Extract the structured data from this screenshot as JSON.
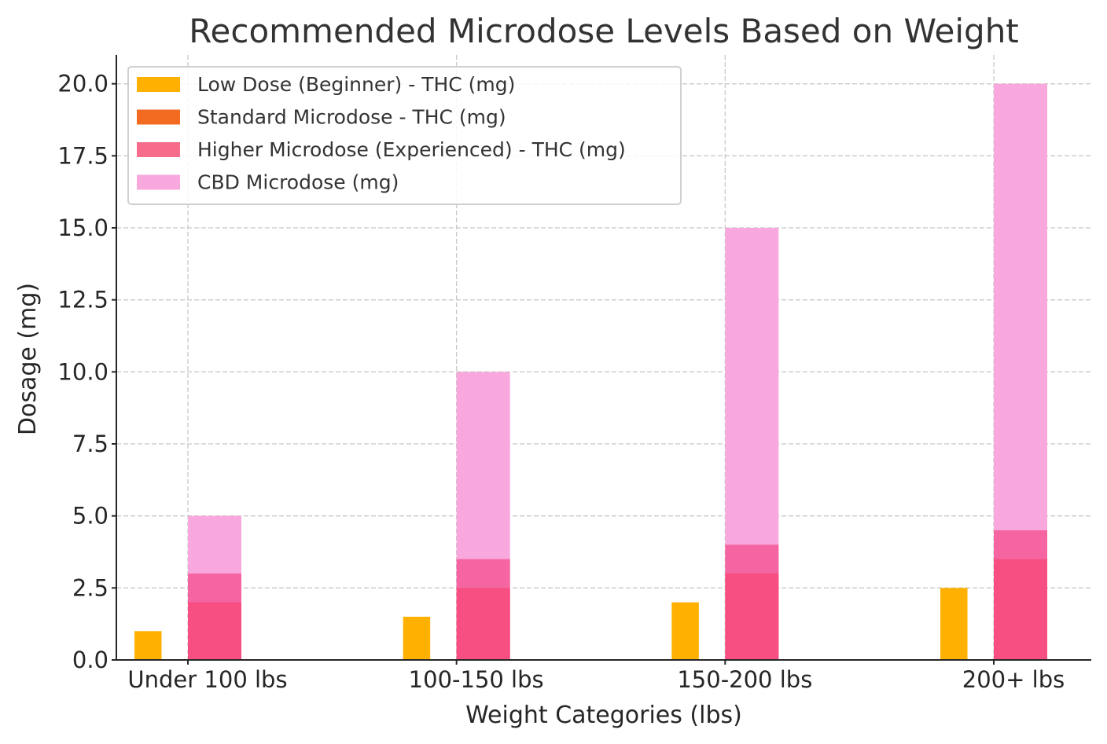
{
  "chart_data": {
    "type": "bar",
    "title": "Recommended Microdose Levels Based on Weight",
    "xlabel": "Weight Categories (lbs)",
    "ylabel": "Dosage (mg)",
    "categories": [
      "Under 100 lbs",
      "100-150 lbs",
      "150-200 lbs",
      "200+ lbs"
    ],
    "ylim": [
      0,
      21
    ],
    "yticks": [
      "0.0",
      "2.5",
      "5.0",
      "7.5",
      "10.0",
      "12.5",
      "15.0",
      "17.5",
      "20.0"
    ],
    "grid": true,
    "legend_position": "top-left",
    "series": [
      {
        "name": "Low Dose (Beginner) - THC (mg)",
        "values": [
          1,
          1.5,
          2,
          2.5
        ],
        "color": "#FFB000"
      },
      {
        "name": "Standard Microdose - THC (mg)",
        "values": [
          2,
          2.5,
          3,
          3.5
        ],
        "color": "#F26B21"
      },
      {
        "name": "Higher Microdose (Experienced) - THC (mg)",
        "values": [
          3,
          3.5,
          4,
          4.5
        ],
        "color": "#F76C8A"
      },
      {
        "name": "CBD Microdose (mg)",
        "values": [
          5,
          10,
          15,
          20
        ],
        "color": "#F9A8DD"
      }
    ],
    "overlap_colors": {
      "standard_under_higher": "#F74F82",
      "higher_under_cbd": "#F565A1"
    }
  }
}
